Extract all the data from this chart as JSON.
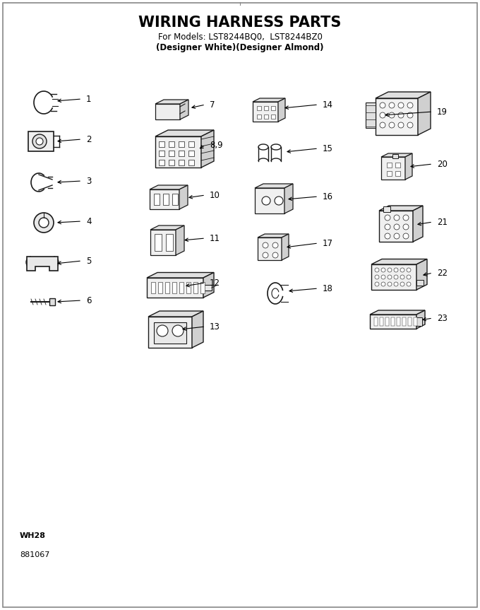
{
  "title": "WIRING HARNESS PARTS",
  "subtitle1": "For Models: LST8244BQ0,  LST8244BZ0",
  "subtitle2": "(Designer White)(Designer Almond)",
  "footer1": "WH28",
  "footer2": "881067",
  "bg_color": "#ffffff",
  "fig_w": 6.8,
  "fig_h": 8.63,
  "dpi": 100
}
